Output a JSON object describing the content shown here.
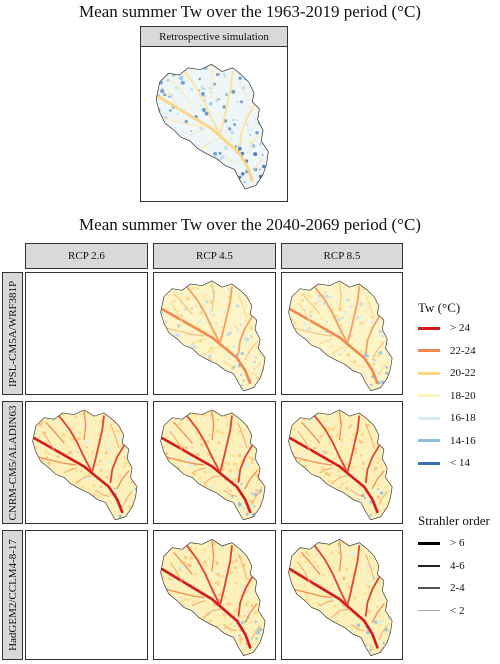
{
  "titles": {
    "top": "Mean summer Tw over the 1963-2019 period (°C)",
    "bottom": "Mean summer Tw over the 2040-2069 period (°C)"
  },
  "retro": {
    "label": "Retrospective simulation"
  },
  "columns": [
    "RCP 2.6",
    "RCP 4.5",
    "RCP 8.5"
  ],
  "rows": [
    "IPSL-CM5A/WRF381P",
    "CNRM-CM5/ALADIN63",
    "HadGEM2/CCLM4-8-17"
  ],
  "legend_tw": {
    "title": "Tw (°C)",
    "items": [
      {
        "label": "> 24",
        "color": "#d7191c"
      },
      {
        "label": "22-24",
        "color": "#f4874b"
      },
      {
        "label": "20-22",
        "color": "#fdd57e"
      },
      {
        "label": "18-20",
        "color": "#fdf7c2"
      },
      {
        "label": "16-18",
        "color": "#d7ecf3"
      },
      {
        "label": "14-16",
        "color": "#8fbfe0"
      },
      {
        "label": "< 14",
        "color": "#3b6fb6"
      }
    ]
  },
  "legend_strahler": {
    "title": "Strahler order",
    "items": [
      {
        "label": "> 6",
        "color": "#000000"
      },
      {
        "label": "4-6",
        "color": "#222222"
      },
      {
        "label": "2-4",
        "color": "#555555"
      },
      {
        "label": "< 2",
        "color": "#aaaaaa"
      }
    ]
  },
  "maps": {
    "retro": {
      "present": true,
      "scenario": "retro"
    },
    "grid": [
      [
        {
          "present": false
        },
        {
          "present": true,
          "scenario": "warm"
        },
        {
          "present": true,
          "scenario": "warm"
        }
      ],
      [
        {
          "present": true,
          "scenario": "hot"
        },
        {
          "present": true,
          "scenario": "hot"
        },
        {
          "present": true,
          "scenario": "hot"
        }
      ],
      [
        {
          "present": false
        },
        {
          "present": true,
          "scenario": "hot"
        },
        {
          "present": true,
          "scenario": "hot"
        }
      ]
    ]
  }
}
